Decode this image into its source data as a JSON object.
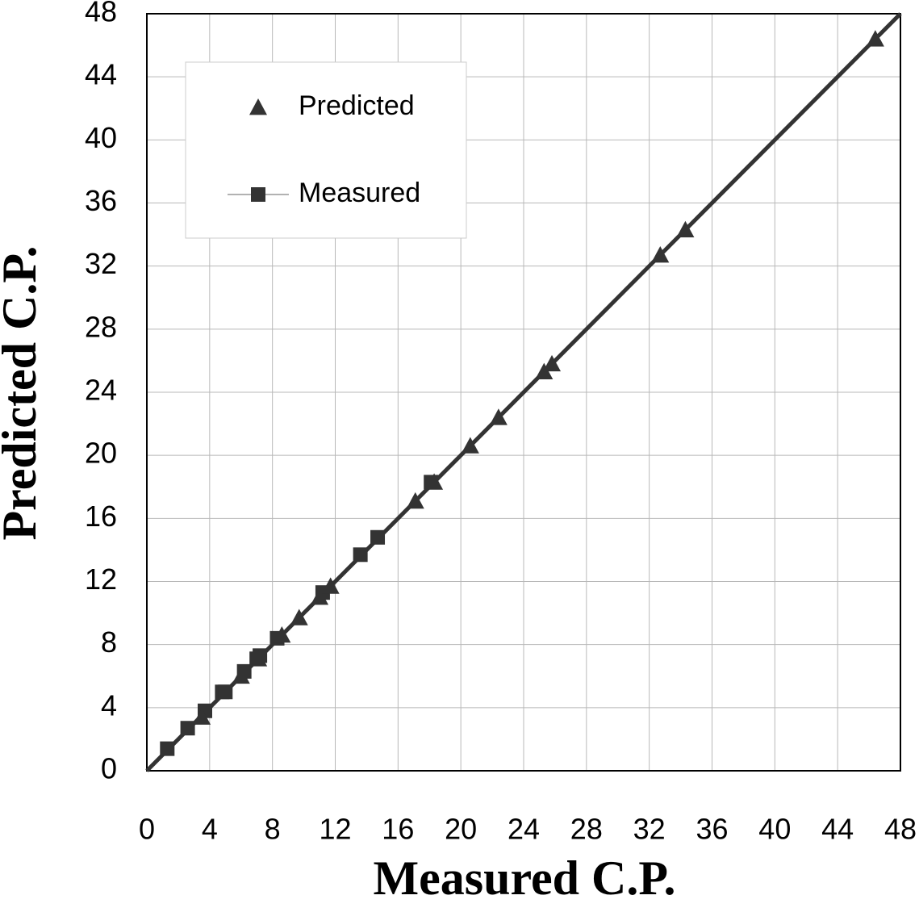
{
  "chart_data": {
    "type": "scatter",
    "x_label": "Measured C.P.",
    "y_label": "Predicted C.P.",
    "xlim": [
      0,
      48
    ],
    "ylim": [
      0,
      48
    ],
    "xticks": [
      0,
      4,
      8,
      12,
      16,
      20,
      24,
      28,
      32,
      36,
      40,
      44,
      48
    ],
    "yticks": [
      0,
      4,
      8,
      12,
      16,
      20,
      24,
      28,
      32,
      36,
      40,
      44,
      48
    ],
    "grid": true,
    "legend": "upper left",
    "series": [
      {
        "name": "Predicted",
        "marker": "triangle",
        "color": "#333333",
        "x": [
          3.5,
          6.0,
          7.1,
          8.6,
          9.7,
          11.0,
          11.7,
          17.1,
          18.3,
          20.6,
          22.4,
          25.3,
          25.8,
          32.7,
          34.3,
          46.4
        ],
        "values": [
          3.4,
          6.0,
          7.1,
          8.6,
          9.7,
          11.0,
          11.7,
          17.1,
          18.3,
          20.6,
          22.4,
          25.3,
          25.8,
          32.7,
          34.3,
          46.4
        ]
      },
      {
        "name": "Measured",
        "marker": "square",
        "color": "#333333",
        "x": [
          1.3,
          2.6,
          3.7,
          4.8,
          5.0,
          6.2,
          7.0,
          7.2,
          8.3,
          11.2,
          13.6,
          14.7,
          18.1
        ],
        "values": [
          1.4,
          2.7,
          3.8,
          5.0,
          5.0,
          6.3,
          7.1,
          7.3,
          8.4,
          11.3,
          13.7,
          14.8,
          18.3
        ]
      }
    ]
  }
}
